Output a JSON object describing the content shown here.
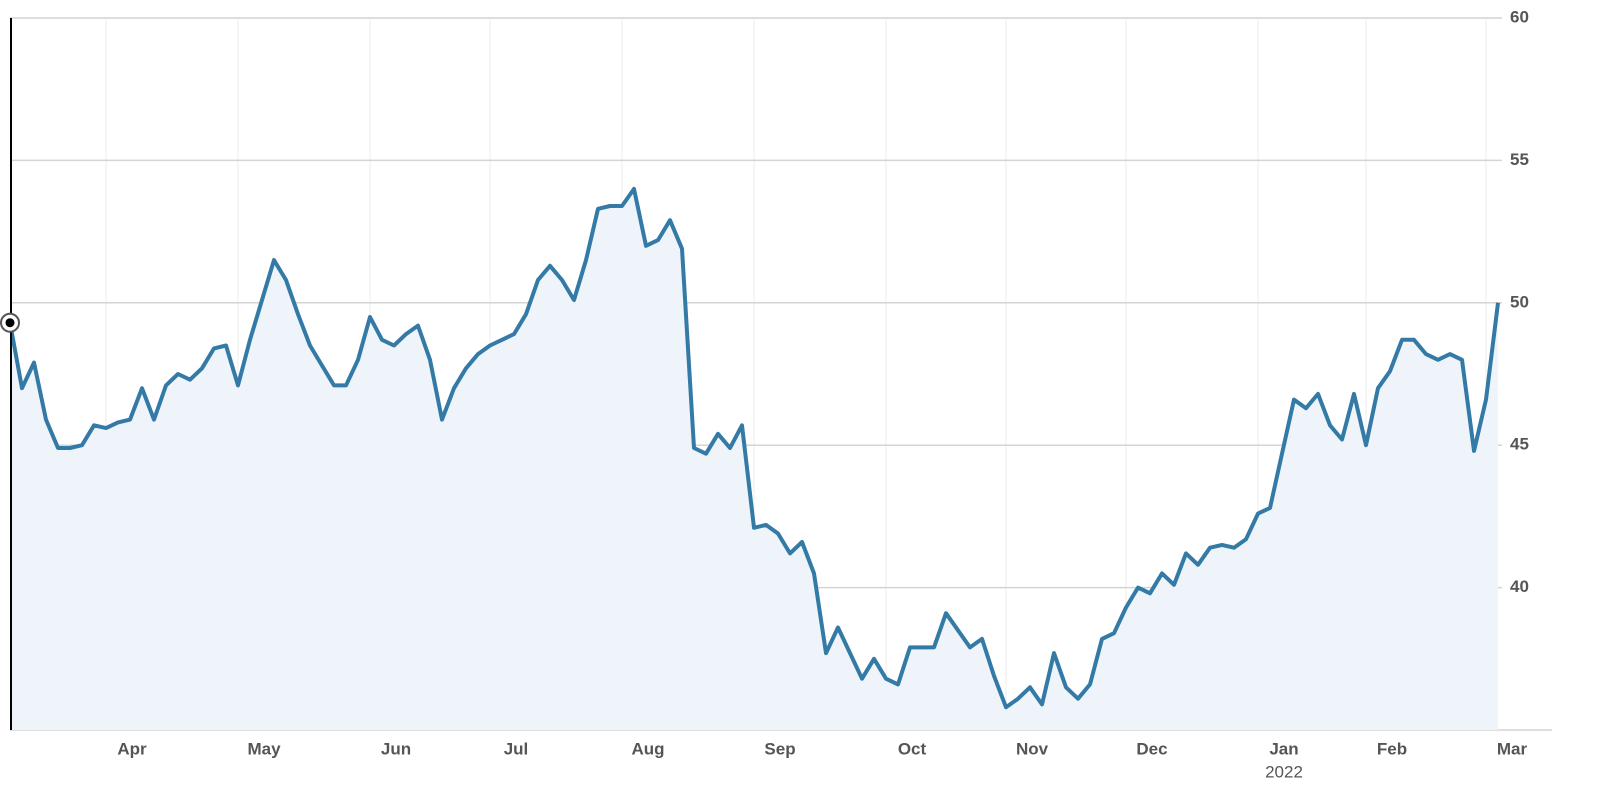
{
  "chart_data": {
    "type": "line",
    "categories": [
      null,
      null,
      null,
      null,
      null,
      null,
      null,
      null,
      "Apr",
      null,
      null,
      null,
      null,
      null,
      null,
      null,
      null,
      null,
      null,
      "May",
      null,
      null,
      null,
      null,
      null,
      null,
      null,
      null,
      null,
      null,
      "Jun",
      null,
      null,
      null,
      null,
      null,
      null,
      null,
      null,
      null,
      "Jul",
      null,
      null,
      null,
      null,
      null,
      null,
      null,
      null,
      null,
      null,
      "Aug",
      null,
      null,
      null,
      null,
      null,
      null,
      null,
      null,
      null,
      null,
      "Sep",
      null,
      null,
      null,
      null,
      null,
      null,
      null,
      null,
      null,
      null,
      "Oct",
      null,
      null,
      null,
      null,
      null,
      null,
      null,
      null,
      null,
      "Nov",
      null,
      null,
      null,
      null,
      null,
      null,
      null,
      null,
      null,
      "Dec",
      null,
      null,
      null,
      null,
      null,
      null,
      null,
      null,
      null,
      null,
      "Jan",
      null,
      null,
      null,
      null,
      null,
      null,
      null,
      null,
      "Feb",
      null,
      null,
      null,
      null,
      null,
      null,
      null,
      null,
      null,
      "Mar",
      null
    ],
    "year_label": "2022",
    "year_label_category": 104,
    "values": [
      49.3,
      47.0,
      47.9,
      45.9,
      44.9,
      44.9,
      45.0,
      45.7,
      45.6,
      45.8,
      45.9,
      47.0,
      45.9,
      47.1,
      47.5,
      47.3,
      47.7,
      48.4,
      48.5,
      47.1,
      48.7,
      50.1,
      51.5,
      50.8,
      49.6,
      48.5,
      47.8,
      47.1,
      47.1,
      48.0,
      49.5,
      48.7,
      48.5,
      48.9,
      49.2,
      48.0,
      45.9,
      47.0,
      47.7,
      48.2,
      48.5,
      48.7,
      48.9,
      49.6,
      50.8,
      51.3,
      50.8,
      50.1,
      51.5,
      53.3,
      53.4,
      53.4,
      54.0,
      52.0,
      52.2,
      52.9,
      51.9,
      44.9,
      44.7,
      45.4,
      44.9,
      45.7,
      42.1,
      42.2,
      41.9,
      41.2,
      41.6,
      40.5,
      37.7,
      38.6,
      37.7,
      36.8,
      37.5,
      36.8,
      36.6,
      37.9,
      37.9,
      37.9,
      39.1,
      38.5,
      37.9,
      38.2,
      36.9,
      35.8,
      36.1,
      36.5,
      35.9,
      37.7,
      36.5,
      36.1,
      36.6,
      38.2,
      38.4,
      39.3,
      40.0,
      39.8,
      40.5,
      40.1,
      41.2,
      40.8,
      41.4,
      41.5,
      41.4,
      41.7,
      42.6,
      42.8,
      44.7,
      46.6,
      46.3,
      46.8,
      45.7,
      45.2,
      46.8,
      45.0,
      47.0,
      47.6,
      48.7,
      48.7,
      48.2,
      48.0,
      48.2,
      48.0,
      44.8,
      46.6,
      50.0
    ],
    "color": "#347aa6",
    "fill_color": "#eef4f9",
    "ylim": [
      35,
      60
    ],
    "yticks": [
      40,
      45,
      50,
      55,
      60
    ],
    "grid": true
  }
}
